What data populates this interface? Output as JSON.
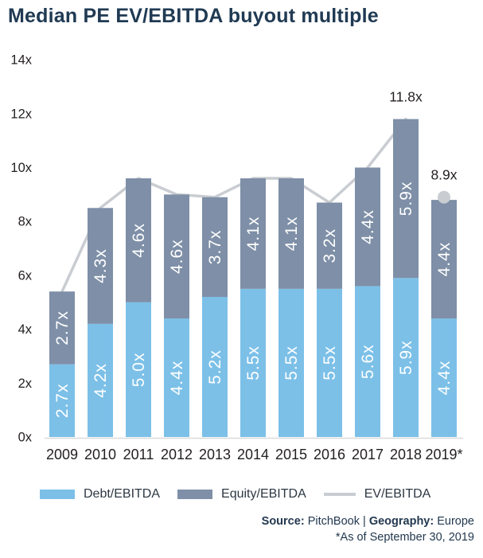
{
  "title": "Median PE EV/EBITDA buyout multiple",
  "chart_data": {
    "type": "bar",
    "stacked": true,
    "title": "Median PE EV/EBITDA buyout multiple",
    "categories": [
      "2009",
      "2010",
      "2011",
      "2012",
      "2013",
      "2014",
      "2015",
      "2016",
      "2017",
      "2018",
      "2019*"
    ],
    "series": [
      {
        "name": "Debt/EBITDA",
        "role": "bar",
        "color": "#7CC0E8",
        "values": [
          2.7,
          4.2,
          5.0,
          4.4,
          5.2,
          5.5,
          5.5,
          5.5,
          5.6,
          5.9,
          4.4
        ]
      },
      {
        "name": "Equity/EBITDA",
        "role": "bar",
        "color": "#7E8FA7",
        "values": [
          2.7,
          4.3,
          4.6,
          4.6,
          3.7,
          4.1,
          4.1,
          3.2,
          4.4,
          5.9,
          4.4
        ]
      },
      {
        "name": "EV/EBITDA",
        "role": "line",
        "color": "#C9CDD2",
        "last_point_as_dot": true,
        "values": [
          5.4,
          8.5,
          9.6,
          9.0,
          8.9,
          9.6,
          9.6,
          8.7,
          10.0,
          11.8,
          8.9
        ]
      }
    ],
    "bar_label_suffix": "x",
    "bar_label_color": "#ffffff",
    "annotations": [
      {
        "text": "11.8x",
        "category": "2018",
        "value": 11.8
      },
      {
        "text": "8.9x",
        "category": "2019*",
        "value": 8.9
      }
    ],
    "yticks": [
      "0x",
      "2x",
      "4x",
      "6x",
      "8x",
      "10x",
      "12x",
      "14x"
    ],
    "ylim": [
      0,
      14
    ],
    "grid": false,
    "legend_position": "bottom",
    "axis_text_color": "#231F20",
    "annotation_color": "#231F20"
  },
  "footer": {
    "source_label": "Source:",
    "source_value": "PitchBook",
    "separator": "|",
    "geography_label": "Geography:",
    "geography_value": "Europe",
    "footnote": "*As of September 30, 2019"
  }
}
